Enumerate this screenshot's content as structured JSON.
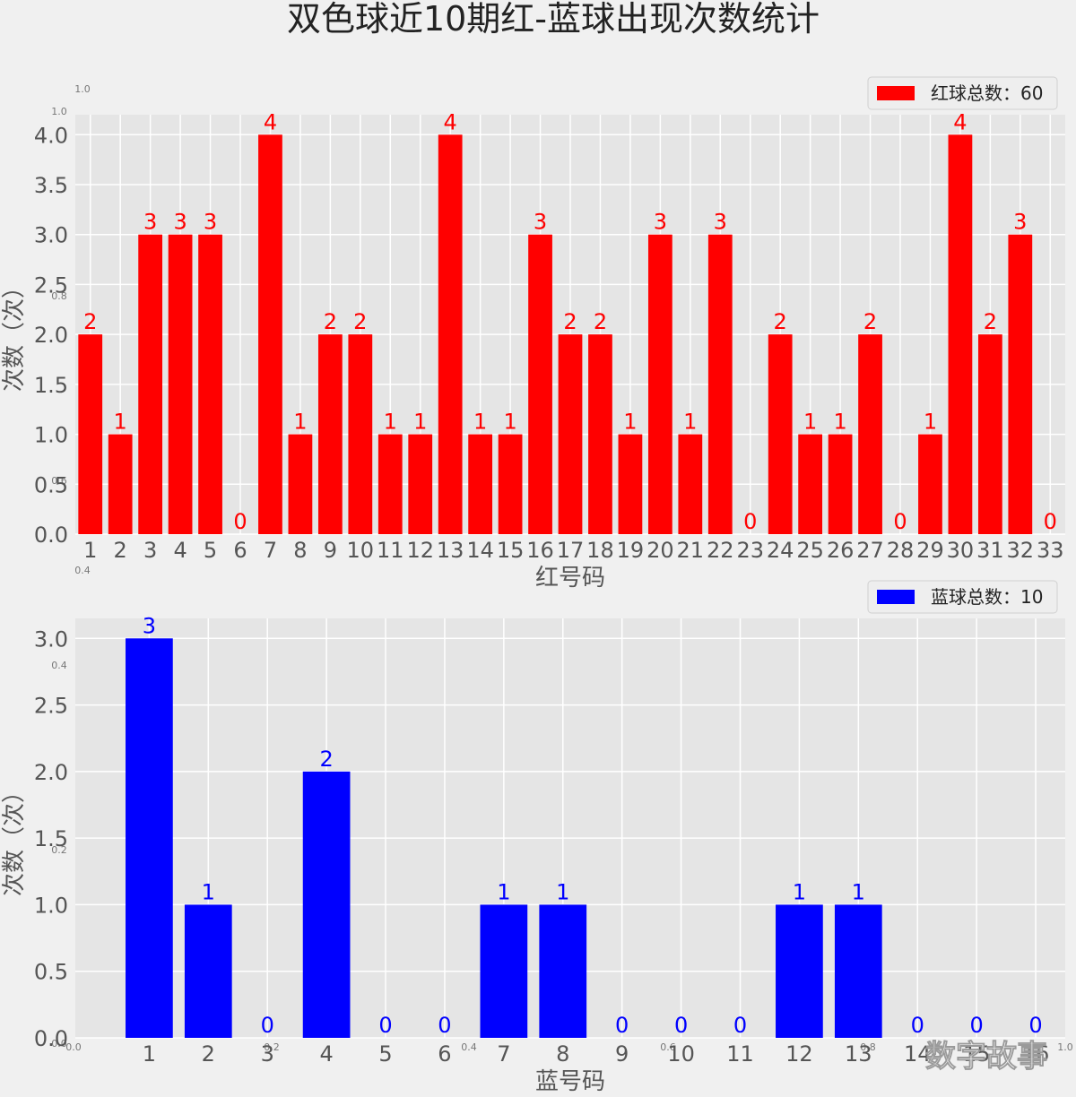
{
  "title": "双色球近10期红-蓝球出现次数统计",
  "watermark": "数字故事",
  "colors": {
    "background": "#f0f0f0",
    "plot_bg": "#e5e5e5",
    "grid": "#ffffff",
    "red": "#ff0000",
    "blue": "#0000ff",
    "text": "#555555",
    "title": "#222222"
  },
  "chart_data": [
    {
      "type": "bar",
      "categories": [
        "1",
        "2",
        "3",
        "4",
        "5",
        "6",
        "7",
        "8",
        "9",
        "10",
        "11",
        "12",
        "13",
        "14",
        "15",
        "16",
        "17",
        "18",
        "19",
        "20",
        "21",
        "22",
        "23",
        "24",
        "25",
        "26",
        "27",
        "28",
        "29",
        "30",
        "31",
        "32",
        "33"
      ],
      "values": [
        2,
        1,
        3,
        3,
        3,
        0,
        4,
        1,
        2,
        2,
        1,
        1,
        4,
        1,
        1,
        3,
        2,
        2,
        1,
        3,
        1,
        3,
        0,
        2,
        1,
        1,
        2,
        0,
        1,
        4,
        2,
        3,
        0
      ],
      "xlabel": "红号码",
      "ylabel": "次数（次）",
      "ylim": [
        0,
        4.2
      ],
      "yticks": [
        "0.0",
        "0.5",
        "1.0",
        "1.5",
        "2.0",
        "2.5",
        "3.0",
        "3.5",
        "4.0"
      ],
      "legend": "红球总数：60",
      "legend_position": "top-right",
      "color": "#ff0000",
      "grid": true
    },
    {
      "type": "bar",
      "categories": [
        "1",
        "2",
        "3",
        "4",
        "5",
        "6",
        "7",
        "8",
        "9",
        "10",
        "11",
        "12",
        "13",
        "14",
        "15",
        "16"
      ],
      "values": [
        3,
        1,
        0,
        2,
        0,
        0,
        1,
        1,
        0,
        0,
        0,
        1,
        1,
        0,
        0,
        0
      ],
      "xlabel": "蓝号码",
      "ylabel": "次数（次）",
      "ylim": [
        0,
        3.15
      ],
      "yticks": [
        "0.0",
        "0.5",
        "1.0",
        "1.5",
        "2.0",
        "2.5",
        "3.0"
      ],
      "legend": "蓝球总数：10",
      "legend_position": "top-right",
      "color": "#0000ff",
      "grid": true
    }
  ],
  "ghost_axis": {
    "left_labels": [
      "1.0",
      "0.8",
      "0.6",
      "0.4",
      "0.2",
      "0.0"
    ],
    "bottom_labels": [
      "0.0",
      "0.2",
      "0.4",
      "0.6",
      "0.8",
      "1.0"
    ]
  }
}
